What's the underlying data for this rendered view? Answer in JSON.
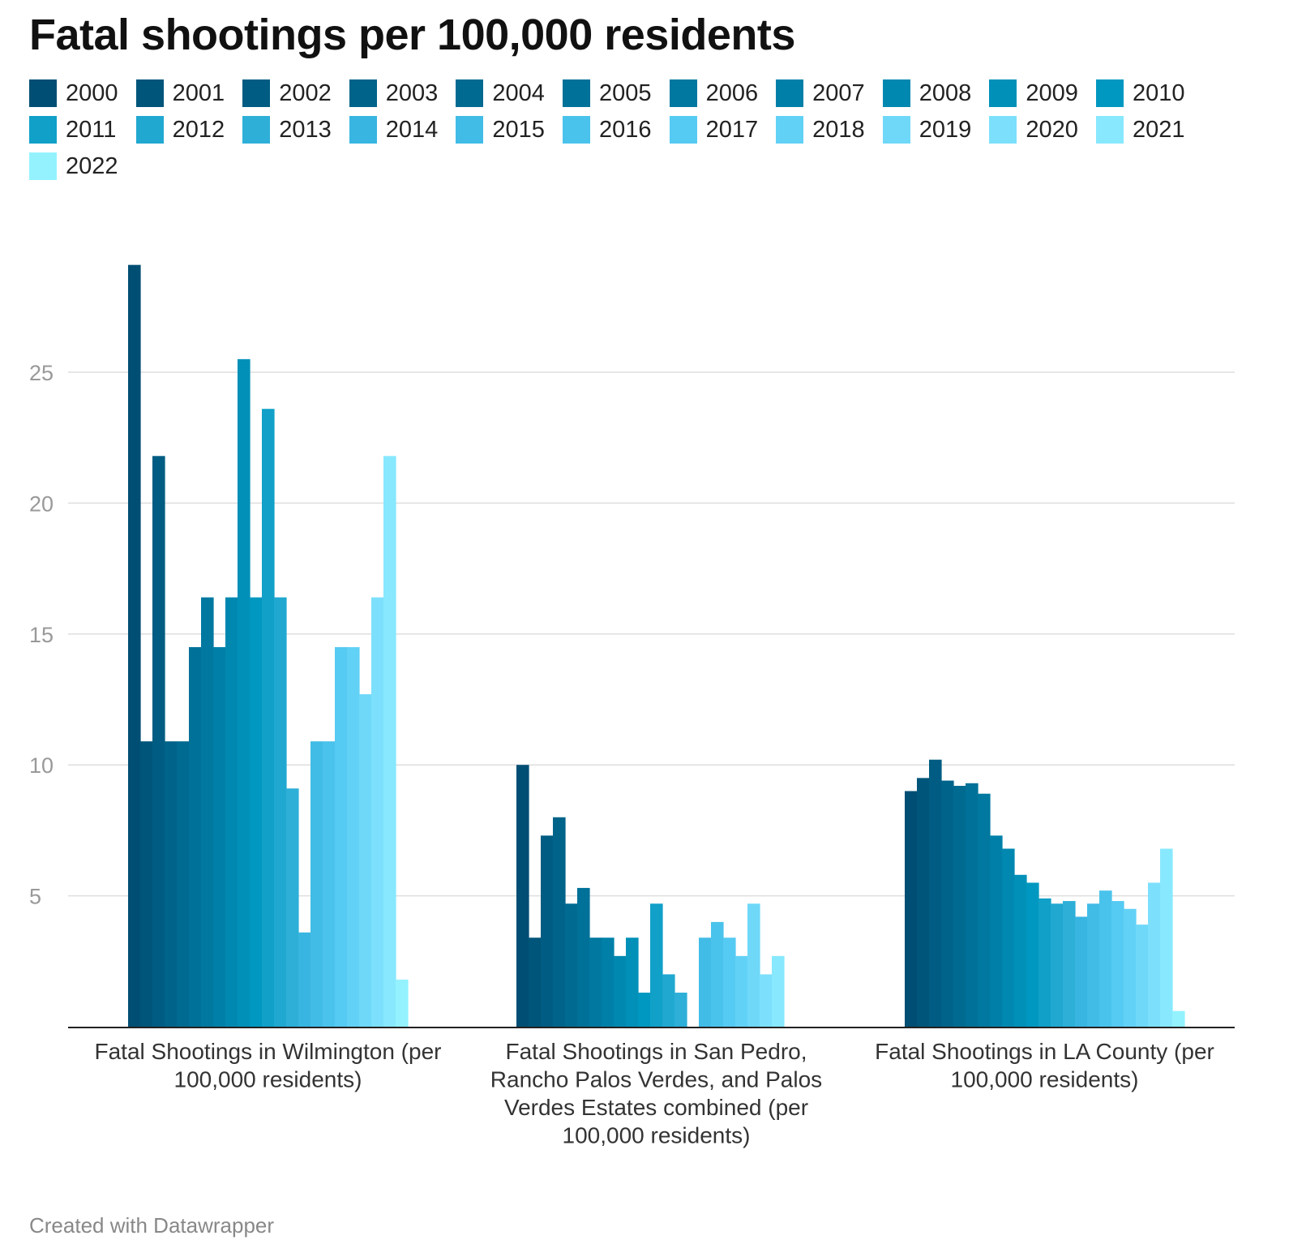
{
  "title": "Fatal shootings per 100,000 residents",
  "footer": "Created with Datawrapper",
  "chart_data": {
    "type": "bar",
    "title": "Fatal shootings per 100,000 residents",
    "xlabel": "",
    "ylabel": "",
    "ylim": [
      0,
      30
    ],
    "yticks": [
      5,
      10,
      15,
      20,
      25
    ],
    "grid": true,
    "legend_position": "top",
    "categories": [
      "Fatal Shootings in Wilmington (per 100,000 residents)",
      "Fatal Shootings in San Pedro, Rancho Palos Verdes, and Palos Verdes Estates combined (per 100,000 residents)",
      "Fatal Shootings in LA County (per 100,000 residents)"
    ],
    "series": [
      {
        "name": "2000",
        "color": "#004e73",
        "values": [
          29.1,
          10.0,
          9.0
        ]
      },
      {
        "name": "2001",
        "color": "#00557a",
        "values": [
          10.9,
          3.4,
          9.5
        ]
      },
      {
        "name": "2002",
        "color": "#005c82",
        "values": [
          21.8,
          7.3,
          10.2
        ]
      },
      {
        "name": "2003",
        "color": "#006389",
        "values": [
          10.9,
          8.0,
          9.4
        ]
      },
      {
        "name": "2004",
        "color": "#006a91",
        "values": [
          10.9,
          4.7,
          9.2
        ]
      },
      {
        "name": "2005",
        "color": "#007198",
        "values": [
          14.5,
          5.3,
          9.3
        ]
      },
      {
        "name": "2006",
        "color": "#0078a0",
        "values": [
          16.4,
          3.4,
          8.9
        ]
      },
      {
        "name": "2007",
        "color": "#0080a8",
        "values": [
          14.5,
          3.4,
          7.3
        ]
      },
      {
        "name": "2008",
        "color": "#0088b0",
        "values": [
          16.4,
          2.7,
          6.8
        ]
      },
      {
        "name": "2009",
        "color": "#0090b8",
        "values": [
          25.5,
          3.4,
          5.8
        ]
      },
      {
        "name": "2010",
        "color": "#0098c0",
        "values": [
          16.4,
          1.3,
          5.5
        ]
      },
      {
        "name": "2011",
        "color": "#10a0c8",
        "values": [
          23.6,
          4.7,
          4.9
        ]
      },
      {
        "name": "2012",
        "color": "#20a8d0",
        "values": [
          16.4,
          2.0,
          4.7
        ]
      },
      {
        "name": "2013",
        "color": "#2eafd8",
        "values": [
          9.1,
          1.3,
          4.8
        ]
      },
      {
        "name": "2014",
        "color": "#38b5e0",
        "values": [
          3.6,
          0,
          4.2
        ]
      },
      {
        "name": "2015",
        "color": "#41bce6",
        "values": [
          10.9,
          3.4,
          4.7
        ]
      },
      {
        "name": "2016",
        "color": "#4ac3ec",
        "values": [
          10.9,
          4.0,
          5.2
        ]
      },
      {
        "name": "2017",
        "color": "#55caf2",
        "values": [
          14.5,
          3.4,
          4.8
        ]
      },
      {
        "name": "2018",
        "color": "#62d1f6",
        "values": [
          14.5,
          2.7,
          4.5
        ]
      },
      {
        "name": "2019",
        "color": "#6fd8f9",
        "values": [
          12.7,
          4.7,
          3.9
        ]
      },
      {
        "name": "2020",
        "color": "#7ce0fc",
        "values": [
          16.4,
          2.0,
          5.5
        ]
      },
      {
        "name": "2021",
        "color": "#88e8fe",
        "values": [
          21.8,
          2.7,
          6.8
        ]
      },
      {
        "name": "2022",
        "color": "#94f2ff",
        "values": [
          1.8,
          0,
          0.6
        ]
      }
    ]
  }
}
